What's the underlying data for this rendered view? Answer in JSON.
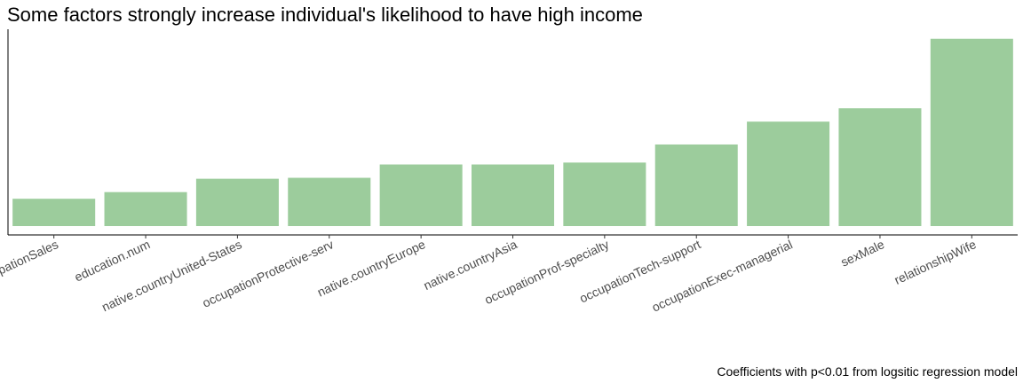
{
  "chart_data": {
    "type": "bar",
    "title": "Some factors strongly increase individual's likelihood to have high income",
    "caption": "Coefficients with p<0.01 from logsitic regression model",
    "xlabel": "",
    "ylabel": "",
    "categories": [
      "occupationSales",
      "education.num",
      "native.countryUnited-States",
      "occupationProtective-serv",
      "native.countryEurope",
      "native.countryAsia",
      "occupationProf-specialty",
      "occupationTech-support",
      "occupationExec-managerial",
      "sexMale",
      "relationshipWife"
    ],
    "values": [
      0.38,
      0.45,
      0.59,
      0.6,
      0.74,
      0.74,
      0.76,
      0.95,
      1.19,
      1.33,
      2.06
    ],
    "ylim": [
      0,
      2.16
    ],
    "y_axis_visible": false,
    "grid": false,
    "legend": "none",
    "bar_color": "#9ccc9c"
  }
}
